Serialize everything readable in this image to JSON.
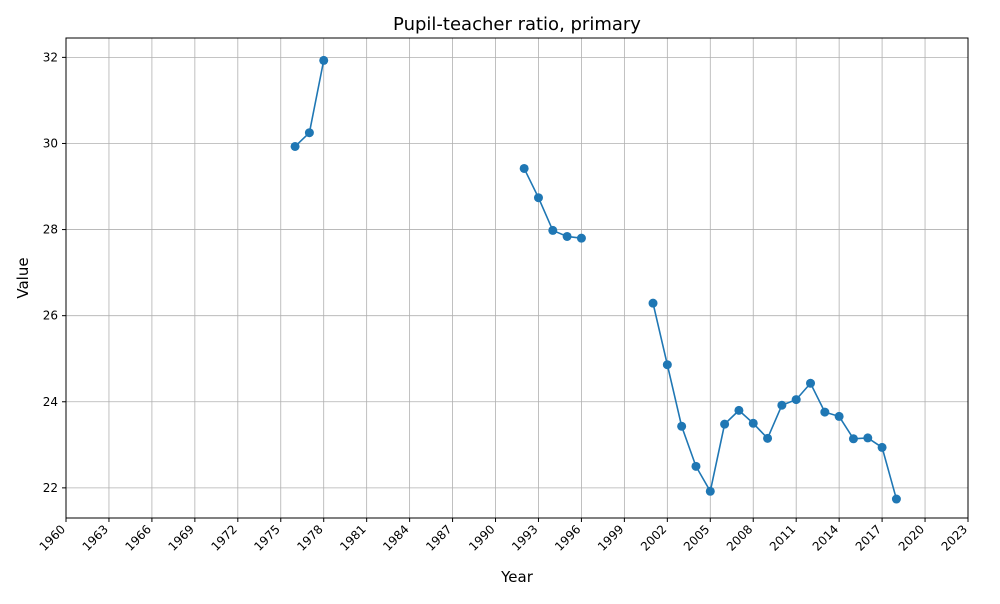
{
  "chart_data": {
    "type": "line",
    "title": "Pupil-teacher ratio, primary",
    "xlabel": "Year",
    "ylabel": "Value",
    "xlim": [
      1960,
      2023
    ],
    "ylim": [
      21.3,
      32.45
    ],
    "x_ticks": [
      1960,
      1963,
      1966,
      1969,
      1972,
      1975,
      1978,
      1981,
      1984,
      1987,
      1990,
      1993,
      1996,
      1999,
      2002,
      2005,
      2008,
      2011,
      2014,
      2017,
      2020,
      2023
    ],
    "y_ticks": [
      22,
      24,
      26,
      28,
      30,
      32
    ],
    "grid": true,
    "series": [
      {
        "color": "#1f77b4",
        "segments": [
          [
            [
              1976,
              29.93
            ],
            [
              1977,
              30.25
            ],
            [
              1978,
              31.93
            ]
          ],
          [
            [
              1992,
              29.42
            ],
            [
              1993,
              28.74
            ],
            [
              1994,
              27.98
            ],
            [
              1995,
              27.84
            ],
            [
              1996,
              27.8
            ]
          ],
          [
            [
              2001,
              26.29
            ],
            [
              2002,
              24.86
            ],
            [
              2003,
              23.43
            ],
            [
              2004,
              22.5
            ],
            [
              2005,
              21.92
            ],
            [
              2006,
              23.48
            ],
            [
              2007,
              23.8
            ],
            [
              2008,
              23.5
            ],
            [
              2009,
              23.15
            ],
            [
              2010,
              23.92
            ],
            [
              2011,
              24.05
            ],
            [
              2012,
              24.43
            ],
            [
              2013,
              23.76
            ],
            [
              2014,
              23.66
            ],
            [
              2015,
              23.14
            ],
            [
              2016,
              23.16
            ],
            [
              2017,
              22.94
            ],
            [
              2018,
              21.74
            ]
          ]
        ]
      }
    ]
  }
}
